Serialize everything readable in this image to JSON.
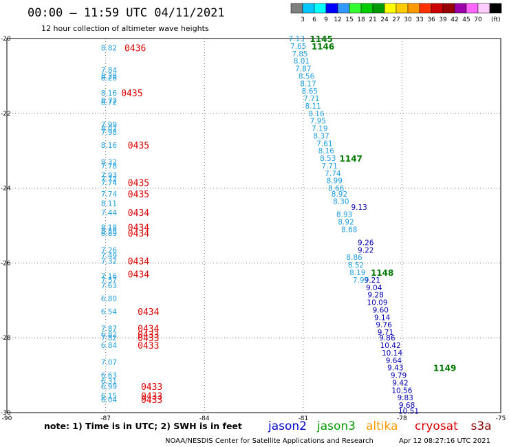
{
  "header": {
    "title": "00:00 – 11:59 UTC 04/11/2021",
    "subtitle": "12 hour collection of altimeter wave heights"
  },
  "colorbar": {
    "colors": [
      "#7f7f7f",
      "#00c8ff",
      "#00ffff",
      "#0000ff",
      "#3399ff",
      "#33ff33",
      "#00cc00",
      "#009900",
      "#ffff00",
      "#ffcc00",
      "#ff9900",
      "#ff3300",
      "#cc0000",
      "#990000",
      "#9900aa",
      "#ff66ff",
      "#ffccff",
      "#000000"
    ],
    "labels": [
      "3",
      "6",
      "9",
      "12",
      "15",
      "18",
      "21",
      "24",
      "27",
      "30",
      "33",
      "36",
      "39",
      "42",
      "45",
      "70"
    ],
    "unit": "(ft)"
  },
  "chart_data": {
    "type": "scatter",
    "xlim": [
      -90,
      -75
    ],
    "ylim": [
      -30,
      -20
    ],
    "xticks": [
      -90,
      -87,
      -84,
      -81,
      -78,
      -75
    ],
    "xtick_labels": [
      "-90",
      "-87",
      "-84",
      "-81",
      "-78",
      "-75"
    ],
    "yticks": [
      -20,
      -22,
      -24,
      -26,
      -28,
      -30
    ],
    "ytick_labels": [
      "-20",
      "-22",
      "-24",
      "-26",
      "-28",
      "-30"
    ],
    "grid": "dotted",
    "colors": {
      "light_blue": "#1e9ee0",
      "dark_blue": "#0000b4",
      "red": "#dd0000",
      "green": "#007a00"
    },
    "series": [
      {
        "name": "jason2",
        "color": "#1e9ee0",
        "points": [
          {
            "x": -86.9,
            "y": -20.25,
            "v": "8.82"
          },
          {
            "x": -86.9,
            "y": -20.85,
            "v": "7.84"
          },
          {
            "x": -86.9,
            "y": -21.0,
            "v": "8.28"
          },
          {
            "x": -86.9,
            "y": -21.05,
            "v": "8.28"
          },
          {
            "x": -86.9,
            "y": -21.45,
            "v": "8.16"
          },
          {
            "x": -86.9,
            "y": -21.65,
            "v": "8.72"
          },
          {
            "x": -86.9,
            "y": -21.7,
            "v": "8.72"
          },
          {
            "x": -86.9,
            "y": -22.3,
            "v": "7.99"
          },
          {
            "x": -86.9,
            "y": -22.4,
            "v": "8.02"
          },
          {
            "x": -86.9,
            "y": -22.5,
            "v": "7.98"
          },
          {
            "x": -86.9,
            "y": -22.85,
            "v": "8.16"
          },
          {
            "x": -86.9,
            "y": -23.3,
            "v": "8.32"
          },
          {
            "x": -86.9,
            "y": -23.4,
            "v": "7.78"
          },
          {
            "x": -86.9,
            "y": -23.65,
            "v": "7.93"
          },
          {
            "x": -86.9,
            "y": -23.75,
            "v": "7.72"
          },
          {
            "x": -86.9,
            "y": -23.85,
            "v": "7.74"
          },
          {
            "x": -86.9,
            "y": -24.15,
            "v": "7.74"
          },
          {
            "x": -86.9,
            "y": -24.4,
            "v": "8.11"
          },
          {
            "x": -86.9,
            "y": -24.65,
            "v": "7.44"
          },
          {
            "x": -86.9,
            "y": -25.05,
            "v": "8.18"
          },
          {
            "x": -86.9,
            "y": -25.15,
            "v": "8.58"
          },
          {
            "x": -86.9,
            "y": -25.2,
            "v": "6.89"
          },
          {
            "x": -86.9,
            "y": -25.65,
            "v": "7.26"
          },
          {
            "x": -86.9,
            "y": -25.8,
            "v": "7.49"
          },
          {
            "x": -86.9,
            "y": -25.95,
            "v": "7.32"
          },
          {
            "x": -86.9,
            "y": -26.35,
            "v": "7.16"
          },
          {
            "x": -86.9,
            "y": -26.45,
            "v": "7.57"
          },
          {
            "x": -86.9,
            "y": -26.6,
            "v": "7.63"
          },
          {
            "x": -86.9,
            "y": -26.95,
            "v": "6.80"
          },
          {
            "x": -86.9,
            "y": -27.3,
            "v": "6.54"
          },
          {
            "x": -86.9,
            "y": -27.75,
            "v": "7.87"
          },
          {
            "x": -86.9,
            "y": -27.9,
            "v": "6.82"
          },
          {
            "x": -86.9,
            "y": -28.0,
            "v": "7.82"
          },
          {
            "x": -86.9,
            "y": -28.2,
            "v": "6.84"
          },
          {
            "x": -86.9,
            "y": -28.65,
            "v": "7.07"
          },
          {
            "x": -86.9,
            "y": -29.0,
            "v": "6.63"
          },
          {
            "x": -86.9,
            "y": -29.15,
            "v": "6.31"
          },
          {
            "x": -86.9,
            "y": -29.3,
            "v": "6.99"
          },
          {
            "x": -86.9,
            "y": -29.55,
            "v": "6.15"
          },
          {
            "x": -86.9,
            "y": -29.65,
            "v": "6.04"
          }
        ]
      },
      {
        "name": "jason3",
        "color": "#0000b4",
        "points": [
          {
            "x": -79.3,
            "y": -24.5,
            "v": "9.13"
          },
          {
            "x": -79.1,
            "y": -25.45,
            "v": "9.26"
          },
          {
            "x": -79.1,
            "y": -25.65,
            "v": "9.22"
          },
          {
            "x": -78.9,
            "y": -26.45,
            "v": "9.21"
          },
          {
            "x": -78.85,
            "y": -26.65,
            "v": "9.04"
          },
          {
            "x": -78.8,
            "y": -26.85,
            "v": "9.28"
          },
          {
            "x": -78.75,
            "y": -27.05,
            "v": "10.09"
          },
          {
            "x": -78.65,
            "y": -27.25,
            "v": "9.60"
          },
          {
            "x": -78.6,
            "y": -27.45,
            "v": "9.14"
          },
          {
            "x": -78.55,
            "y": -27.65,
            "v": "9.76"
          },
          {
            "x": -78.5,
            "y": -27.85,
            "v": "9.71"
          },
          {
            "x": -78.45,
            "y": -28.0,
            "v": "9.86"
          },
          {
            "x": -78.35,
            "y": -28.2,
            "v": "10.42"
          },
          {
            "x": -78.3,
            "y": -28.4,
            "v": "10.14"
          },
          {
            "x": -78.25,
            "y": -28.6,
            "v": "9.64"
          },
          {
            "x": -78.2,
            "y": -28.8,
            "v": "9.43"
          },
          {
            "x": -78.1,
            "y": -29.0,
            "v": "9.79"
          },
          {
            "x": -78.05,
            "y": -29.2,
            "v": "9.42"
          },
          {
            "x": -78.0,
            "y": -29.4,
            "v": "10.56"
          },
          {
            "x": -77.9,
            "y": -29.6,
            "v": "9.83"
          },
          {
            "x": -77.85,
            "y": -29.8,
            "v": "9.68"
          },
          {
            "x": -77.8,
            "y": -29.95,
            "v": "10.51"
          }
        ]
      },
      {
        "name": "cryosat",
        "color": "#1e9ee0",
        "points": [
          {
            "x": -81.2,
            "y": -20.0,
            "v": "7.13"
          },
          {
            "x": -81.15,
            "y": -20.2,
            "v": "7.65"
          },
          {
            "x": -81.1,
            "y": -20.4,
            "v": "7.85"
          },
          {
            "x": -81.05,
            "y": -20.6,
            "v": "8.01"
          },
          {
            "x": -81.0,
            "y": -20.8,
            "v": "7.87"
          },
          {
            "x": -80.9,
            "y": -21.0,
            "v": "8.56"
          },
          {
            "x": -80.85,
            "y": -21.2,
            "v": "8.17"
          },
          {
            "x": -80.8,
            "y": -21.4,
            "v": "8.65"
          },
          {
            "x": -80.75,
            "y": -21.6,
            "v": "7.71"
          },
          {
            "x": -80.7,
            "y": -21.8,
            "v": "8.11"
          },
          {
            "x": -80.6,
            "y": -22.0,
            "v": "8.16"
          },
          {
            "x": -80.55,
            "y": -22.2,
            "v": "7.95"
          },
          {
            "x": -80.5,
            "y": -22.4,
            "v": "7.19"
          },
          {
            "x": -80.45,
            "y": -22.6,
            "v": "8.37"
          },
          {
            "x": -80.35,
            "y": -22.8,
            "v": "7.61"
          },
          {
            "x": -80.3,
            "y": -23.0,
            "v": "8.16"
          },
          {
            "x": -80.25,
            "y": -23.2,
            "v": "8.53"
          },
          {
            "x": -80.2,
            "y": -23.4,
            "v": "7.71"
          },
          {
            "x": -80.1,
            "y": -23.6,
            "v": "7.74"
          },
          {
            "x": -80.05,
            "y": -23.8,
            "v": "8.99"
          },
          {
            "x": -80.0,
            "y": -24.0,
            "v": "8.66"
          },
          {
            "x": -79.9,
            "y": -24.15,
            "v": "8.92"
          },
          {
            "x": -79.85,
            "y": -24.35,
            "v": "8.30"
          },
          {
            "x": -79.75,
            "y": -24.7,
            "v": "8.93"
          },
          {
            "x": -79.7,
            "y": -24.9,
            "v": "8.92"
          },
          {
            "x": -79.6,
            "y": -25.1,
            "v": "8.68"
          },
          {
            "x": -79.45,
            "y": -25.85,
            "v": "8.86"
          },
          {
            "x": -79.4,
            "y": -26.05,
            "v": "8.52"
          },
          {
            "x": -79.35,
            "y": -26.25,
            "v": "8.19"
          },
          {
            "x": -79.25,
            "y": -26.45,
            "v": "7.97"
          }
        ]
      }
    ],
    "time_labels": [
      {
        "x": -86.1,
        "y": -20.25,
        "text": "0436",
        "color": "#dd0000"
      },
      {
        "x": -86.2,
        "y": -21.45,
        "text": "0435",
        "color": "#dd0000"
      },
      {
        "x": -86.0,
        "y": -22.85,
        "text": "0435",
        "color": "#dd0000"
      },
      {
        "x": -86.0,
        "y": -23.85,
        "text": "0435",
        "color": "#dd0000"
      },
      {
        "x": -86.0,
        "y": -24.15,
        "text": "0435",
        "color": "#dd0000"
      },
      {
        "x": -86.0,
        "y": -24.65,
        "text": "0434",
        "color": "#dd0000"
      },
      {
        "x": -86.0,
        "y": -25.05,
        "text": "0434",
        "color": "#dd0000"
      },
      {
        "x": -86.0,
        "y": -25.2,
        "text": "0434",
        "color": "#dd0000"
      },
      {
        "x": -86.0,
        "y": -25.95,
        "text": "0434",
        "color": "#dd0000"
      },
      {
        "x": -86.0,
        "y": -26.3,
        "text": "0434",
        "color": "#dd0000"
      },
      {
        "x": -85.7,
        "y": -27.3,
        "text": "0434",
        "color": "#dd0000"
      },
      {
        "x": -85.7,
        "y": -27.75,
        "text": "0434",
        "color": "#dd0000"
      },
      {
        "x": -85.7,
        "y": -27.9,
        "text": "0433",
        "color": "#dd0000"
      },
      {
        "x": -85.7,
        "y": -28.0,
        "text": "0433",
        "color": "#dd0000"
      },
      {
        "x": -85.7,
        "y": -28.2,
        "text": "0433",
        "color": "#dd0000"
      },
      {
        "x": -85.6,
        "y": -29.3,
        "text": "0433",
        "color": "#dd0000"
      },
      {
        "x": -85.6,
        "y": -29.55,
        "text": "0433",
        "color": "#dd0000"
      },
      {
        "x": -85.6,
        "y": -29.65,
        "text": "0433",
        "color": "#dd0000"
      },
      {
        "x": -80.45,
        "y": -20.0,
        "text": "1145",
        "color": "#007a00"
      },
      {
        "x": -80.4,
        "y": -20.2,
        "text": "1146",
        "color": "#007a00"
      },
      {
        "x": -79.55,
        "y": -23.2,
        "text": "1147",
        "color": "#007a00"
      },
      {
        "x": -78.6,
        "y": -26.25,
        "text": "1148",
        "color": "#007a00"
      },
      {
        "x": -76.7,
        "y": -28.8,
        "text": "1149",
        "color": "#007a00"
      }
    ]
  },
  "footer": {
    "note": "note: 1) Time is in UTC; 2) SWH is in feet",
    "legend": [
      {
        "label": "jason2",
        "color": "#0000cc"
      },
      {
        "label": "jason3",
        "color": "#009900"
      },
      {
        "label": "altika",
        "color": "#ff9900"
      },
      {
        "label": "cryosat",
        "color": "#dd0000"
      },
      {
        "label": "s3a",
        "color": "#880000"
      }
    ],
    "credit": "NOAA/NESDIS Center for Satellite Applications and Research",
    "timestamp": "Apr 12 08:27:16 UTC 2021"
  }
}
